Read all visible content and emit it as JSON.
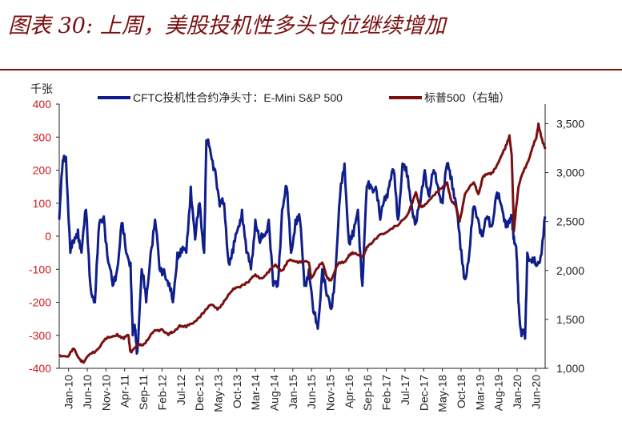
{
  "figure": {
    "title": "图表 30: 上周，美股投机性多头仓位继续增加"
  },
  "colors": {
    "title": "#7a1010",
    "cftc": "#0f1e8a",
    "spx": "#7a1010",
    "left_axis_text": "#d11a1a",
    "right_axis_text": "#222222",
    "axis": "#222222"
  },
  "chart_data": {
    "type": "line",
    "x_tick_labels": [
      "Jan-10",
      "Jun-10",
      "Nov-10",
      "Apr-11",
      "Sep-11",
      "Feb-12",
      "Jul-12",
      "Dec-12",
      "May-13",
      "Oct-13",
      "Mar-14",
      "Aug-14",
      "Jan-15",
      "Jun-15",
      "Nov-15",
      "Apr-16",
      "Sep-16",
      "Feb-17",
      "Jul-17",
      "Dec-17",
      "May-18",
      "Oct-18",
      "Mar-19",
      "Aug-19",
      "Jan-20",
      "Jun-20"
    ],
    "x_range": [
      2010.0,
      2020.9
    ],
    "left_axis": {
      "unit_label": "千张",
      "ylim": [
        -400,
        400
      ],
      "ticks": [
        "400",
        "300",
        "200",
        "100",
        "0",
        "-100",
        "-200",
        "-300",
        "-400"
      ]
    },
    "right_axis": {
      "ylim": [
        1000,
        3700
      ],
      "ticks": [
        "3,500",
        "3,000",
        "2,500",
        "2,000",
        "1,500",
        "1,000"
      ]
    },
    "series": [
      {
        "name": "CFTC投机性合约净头寸：E-Mini S&P 500",
        "axis": "left",
        "x": [
          2010.0,
          2010.08,
          2010.15,
          2010.25,
          2010.33,
          2010.42,
          2010.5,
          2010.6,
          2010.7,
          2010.8,
          2010.9,
          2011.0,
          2011.1,
          2011.2,
          2011.3,
          2011.4,
          2011.5,
          2011.6,
          2011.65,
          2011.7,
          2011.75,
          2011.85,
          2011.95,
          2012.05,
          2012.15,
          2012.25,
          2012.35,
          2012.45,
          2012.55,
          2012.65,
          2012.75,
          2012.85,
          2012.95,
          2013.05,
          2013.15,
          2013.25,
          2013.3,
          2013.4,
          2013.5,
          2013.6,
          2013.7,
          2013.8,
          2013.9,
          2014.0,
          2014.1,
          2014.2,
          2014.3,
          2014.4,
          2014.5,
          2014.6,
          2014.7,
          2014.8,
          2014.9,
          2015.0,
          2015.1,
          2015.2,
          2015.3,
          2015.4,
          2015.5,
          2015.6,
          2015.7,
          2015.8,
          2015.9,
          2016.0,
          2016.1,
          2016.2,
          2016.3,
          2016.4,
          2016.5,
          2016.6,
          2016.7,
          2016.8,
          2016.9,
          2017.0,
          2017.1,
          2017.2,
          2017.3,
          2017.4,
          2017.5,
          2017.6,
          2017.7,
          2017.8,
          2017.9,
          2018.0,
          2018.1,
          2018.2,
          2018.3,
          2018.4,
          2018.5,
          2018.6,
          2018.7,
          2018.8,
          2018.9,
          2019.0,
          2019.1,
          2019.2,
          2019.3,
          2019.4,
          2019.5,
          2019.6,
          2019.7,
          2019.8,
          2019.9,
          2020.0,
          2020.1,
          2020.15,
          2020.2,
          2020.25,
          2020.3,
          2020.35,
          2020.4,
          2020.45,
          2020.5,
          2020.6,
          2020.7,
          2020.8,
          2020.9
        ],
        "values": [
          50,
          230,
          240,
          -50,
          -20,
          20,
          -50,
          80,
          -150,
          -200,
          40,
          60,
          -80,
          -150,
          -100,
          40,
          -50,
          -80,
          -300,
          -280,
          -350,
          -100,
          -200,
          -50,
          50,
          -100,
          -100,
          -150,
          -200,
          -50,
          -50,
          -50,
          150,
          -10,
          100,
          -50,
          290,
          250,
          200,
          90,
          100,
          -80,
          -50,
          20,
          80,
          -50,
          -100,
          50,
          -20,
          0,
          50,
          -150,
          -150,
          80,
          150,
          -50,
          50,
          50,
          -150,
          -100,
          -230,
          -280,
          -100,
          -180,
          -220,
          -100,
          120,
          220,
          -20,
          0,
          80,
          -150,
          150,
          150,
          150,
          50,
          120,
          150,
          200,
          50,
          220,
          180,
          100,
          40,
          100,
          200,
          120,
          200,
          150,
          100,
          220,
          180,
          100,
          -40,
          -130,
          -50,
          90,
          50,
          0,
          60,
          30,
          120,
          100,
          50,
          40,
          50,
          0,
          -30,
          -200,
          -280,
          -290,
          -310,
          -50,
          -80,
          -90,
          -60,
          60
        ]
      },
      {
        "name": "标普500（右轴）",
        "axis": "right",
        "x": [
          2010.0,
          2010.2,
          2010.33,
          2010.45,
          2010.55,
          2010.7,
          2010.85,
          2011.0,
          2011.15,
          2011.3,
          2011.45,
          2011.55,
          2011.6,
          2011.7,
          2011.8,
          2011.9,
          2012.0,
          2012.15,
          2012.3,
          2012.45,
          2012.55,
          2012.7,
          2012.85,
          2013.0,
          2013.2,
          2013.4,
          2013.55,
          2013.7,
          2013.85,
          2014.0,
          2014.1,
          2014.25,
          2014.4,
          2014.55,
          2014.7,
          2014.85,
          2015.0,
          2015.15,
          2015.3,
          2015.45,
          2015.6,
          2015.65,
          2015.75,
          2015.9,
          2016.0,
          2016.1,
          2016.25,
          2016.4,
          2016.5,
          2016.6,
          2016.8,
          2016.9,
          2017.0,
          2017.2,
          2017.4,
          2017.6,
          2017.8,
          2018.0,
          2018.08,
          2018.15,
          2018.3,
          2018.5,
          2018.7,
          2018.8,
          2018.9,
          2018.98,
          2019.1,
          2019.3,
          2019.4,
          2019.5,
          2019.6,
          2019.7,
          2019.85,
          2020.0,
          2020.1,
          2020.15,
          2020.2,
          2020.25,
          2020.3,
          2020.4,
          2020.5,
          2020.6,
          2020.7,
          2020.75,
          2020.85,
          2020.9
        ],
        "values": [
          1140,
          1120,
          1200,
          1100,
          1060,
          1150,
          1190,
          1280,
          1320,
          1350,
          1300,
          1340,
          1170,
          1210,
          1240,
          1250,
          1300,
          1390,
          1400,
          1340,
          1370,
          1440,
          1420,
          1460,
          1560,
          1650,
          1600,
          1690,
          1780,
          1830,
          1850,
          1880,
          1960,
          1920,
          1980,
          2060,
          2000,
          2100,
          2090,
          2100,
          2080,
          1920,
          2000,
          2080,
          1940,
          1900,
          2060,
          2090,
          2160,
          2170,
          2140,
          2240,
          2270,
          2370,
          2410,
          2460,
          2560,
          2800,
          2650,
          2660,
          2720,
          2800,
          2900,
          2710,
          2650,
          2500,
          2780,
          2900,
          2780,
          2950,
          2980,
          3000,
          3100,
          3240,
          3380,
          3180,
          2400,
          2650,
          2850,
          3000,
          3100,
          3230,
          3350,
          3500,
          3300,
          3240
        ]
      }
    ]
  },
  "legend": {
    "cftc_label": "CFTC投机性合约净头寸：E-Mini S&P 500",
    "spx_label": "标普500（右轴）"
  }
}
